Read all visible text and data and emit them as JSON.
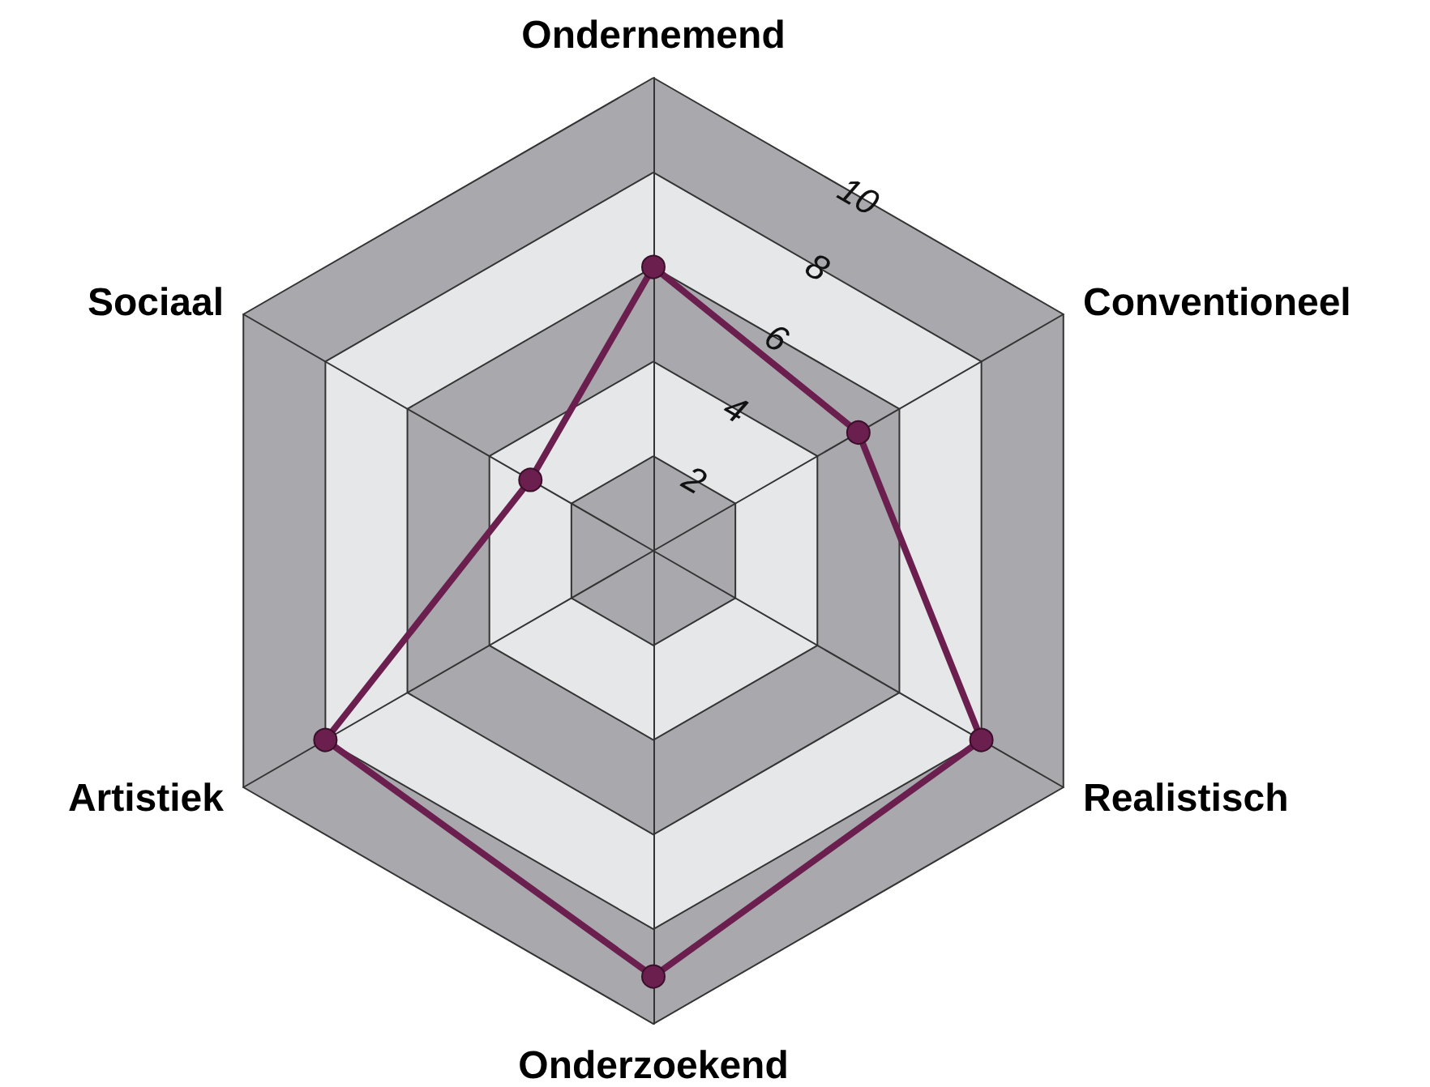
{
  "chart_data": {
    "type": "radar",
    "categories": [
      "Ondernemend",
      "Conventioneel",
      "Realistisch",
      "Onderzoekend",
      "Artistiek",
      "Sociaal"
    ],
    "series": [
      {
        "color": "#6b1f4f",
        "values": [
          6,
          5,
          8,
          9,
          8,
          3
        ]
      }
    ],
    "ylim": [
      0,
      10
    ],
    "yticks": [
      2,
      4,
      6,
      8,
      10
    ],
    "marker": "circle",
    "grid": true
  }
}
